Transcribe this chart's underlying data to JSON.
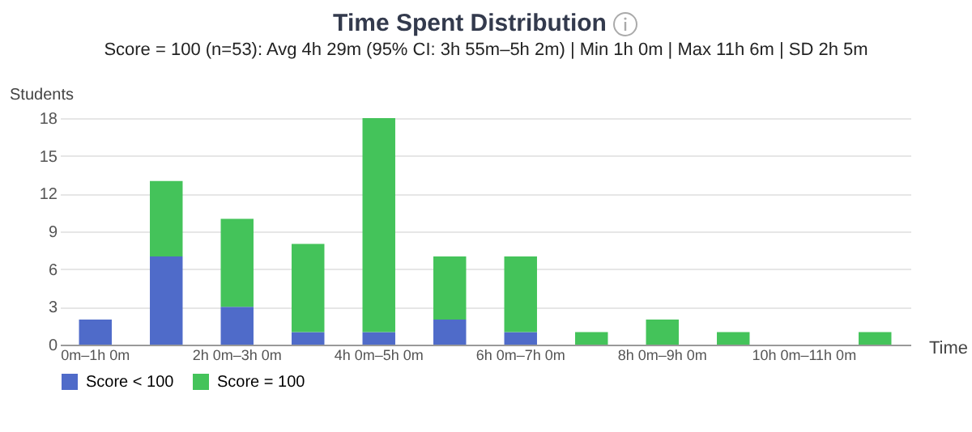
{
  "chart_data": {
    "type": "bar",
    "title": "Time Spent Distribution",
    "subtitle": "Score = 100 (n=53): Avg 4h 29m (95% CI: 3h 55m–5h 2m) | Min 1h 0m | Max 11h 6m | SD 2h 5m",
    "xlabel": "Time",
    "ylabel": "Students",
    "categories": [
      "0m–1h 0m",
      null,
      "2h 0m–3h 0m",
      null,
      "4h 0m–5h 0m",
      null,
      "6h 0m–7h 0m",
      null,
      "8h 0m–9h 0m",
      null,
      "10h 0m–11h 0m",
      null
    ],
    "series": [
      {
        "name": "Score < 100",
        "color": "#4f6bc9",
        "values": [
          2,
          7,
          3,
          1,
          1,
          2,
          1,
          0,
          0,
          0,
          0,
          0
        ]
      },
      {
        "name": "Score = 100",
        "color": "#44c35a",
        "values": [
          0,
          6,
          7,
          7,
          17,
          5,
          6,
          1,
          2,
          1,
          0,
          1
        ]
      }
    ],
    "stacked": true,
    "ylim": [
      0,
      18
    ],
    "yticks": [
      0,
      3,
      6,
      9,
      12,
      15,
      18
    ],
    "grid": "y",
    "legend": "bottom"
  }
}
